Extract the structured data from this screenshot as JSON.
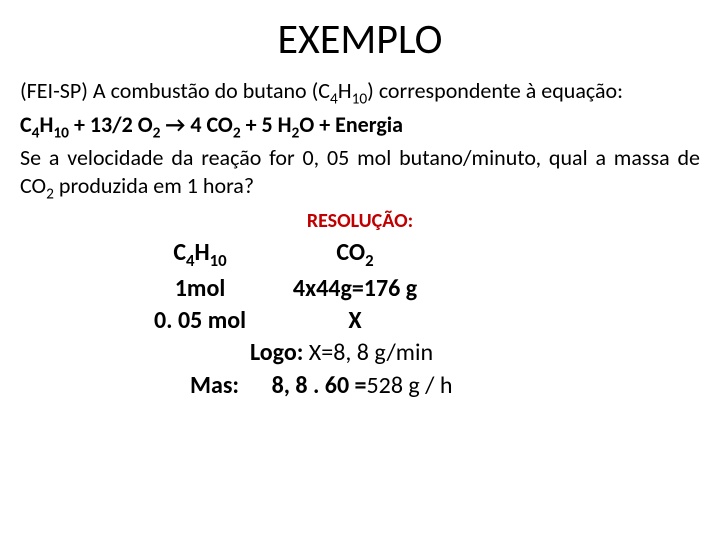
{
  "title": "EXEMPLO",
  "problem": {
    "line1_pre": "(FEI-SP) A combustão do butano (C",
    "sub1": "4",
    "mid1": "H",
    "sub2": "10",
    "line1_post": ") correspondente à equação:",
    "eq_c": "C",
    "eq_4": "4",
    "eq_h": "H",
    "eq_10": "10",
    "eq_plus1": " + 13/2 O",
    "eq_2a": "2",
    "eq_arrow": " → 4 CO",
    "eq_2b": "2",
    "eq_plus2": " +  5 H",
    "eq_2c": "2",
    "eq_end": "O  +  Energia",
    "line3_pre": "Se a velocidade da reação for 0, 05 mol butano/minuto, qual a massa de CO",
    "line3_sub": "2",
    "line3_post": " produzida em 1 hora?"
  },
  "resolucao": "RESOLUÇÃO:",
  "work": {
    "h1_c": "C",
    "h1_4": "4",
    "h1_h": "H",
    "h1_10": "10",
    "h2_co": "CO",
    "h2_2": "2",
    "r1c1": "1mol",
    "r1c2": "4x44g=176 g",
    "r2c1": "0. 05 mol",
    "r2c2": "X",
    "logo_label": "Logo: ",
    "logo_val": "X=8, 8 g/min",
    "mas_label": "Mas:",
    "mas_calc": "8, 8 . 60 =",
    "mas_result": "528 g / h"
  },
  "colors": {
    "text": "#000000",
    "accent": "#c00000",
    "bg": "#ffffff"
  }
}
